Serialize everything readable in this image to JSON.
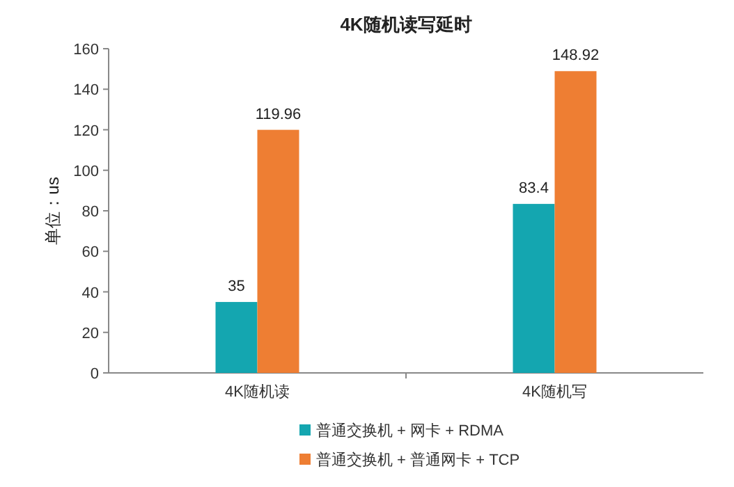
{
  "chart_data": {
    "type": "bar",
    "title": "4K随机读写延时",
    "ylabel": "单位：us",
    "categories": [
      "4K随机读",
      "4K随机写"
    ],
    "series": [
      {
        "name": "普通交换机 + 网卡 + RDMA",
        "color": "#14a6b0",
        "values": [
          35,
          83.4
        ]
      },
      {
        "name": "普通交换机 + 普通网卡 + TCP",
        "color": "#ee7e33",
        "values": [
          119.96,
          148.92
        ]
      }
    ],
    "ylim": [
      0,
      160
    ],
    "yticks": [
      0,
      20,
      40,
      60,
      80,
      100,
      120,
      140,
      160
    ],
    "data_labels": true,
    "legend": "bottom",
    "grid": false
  }
}
